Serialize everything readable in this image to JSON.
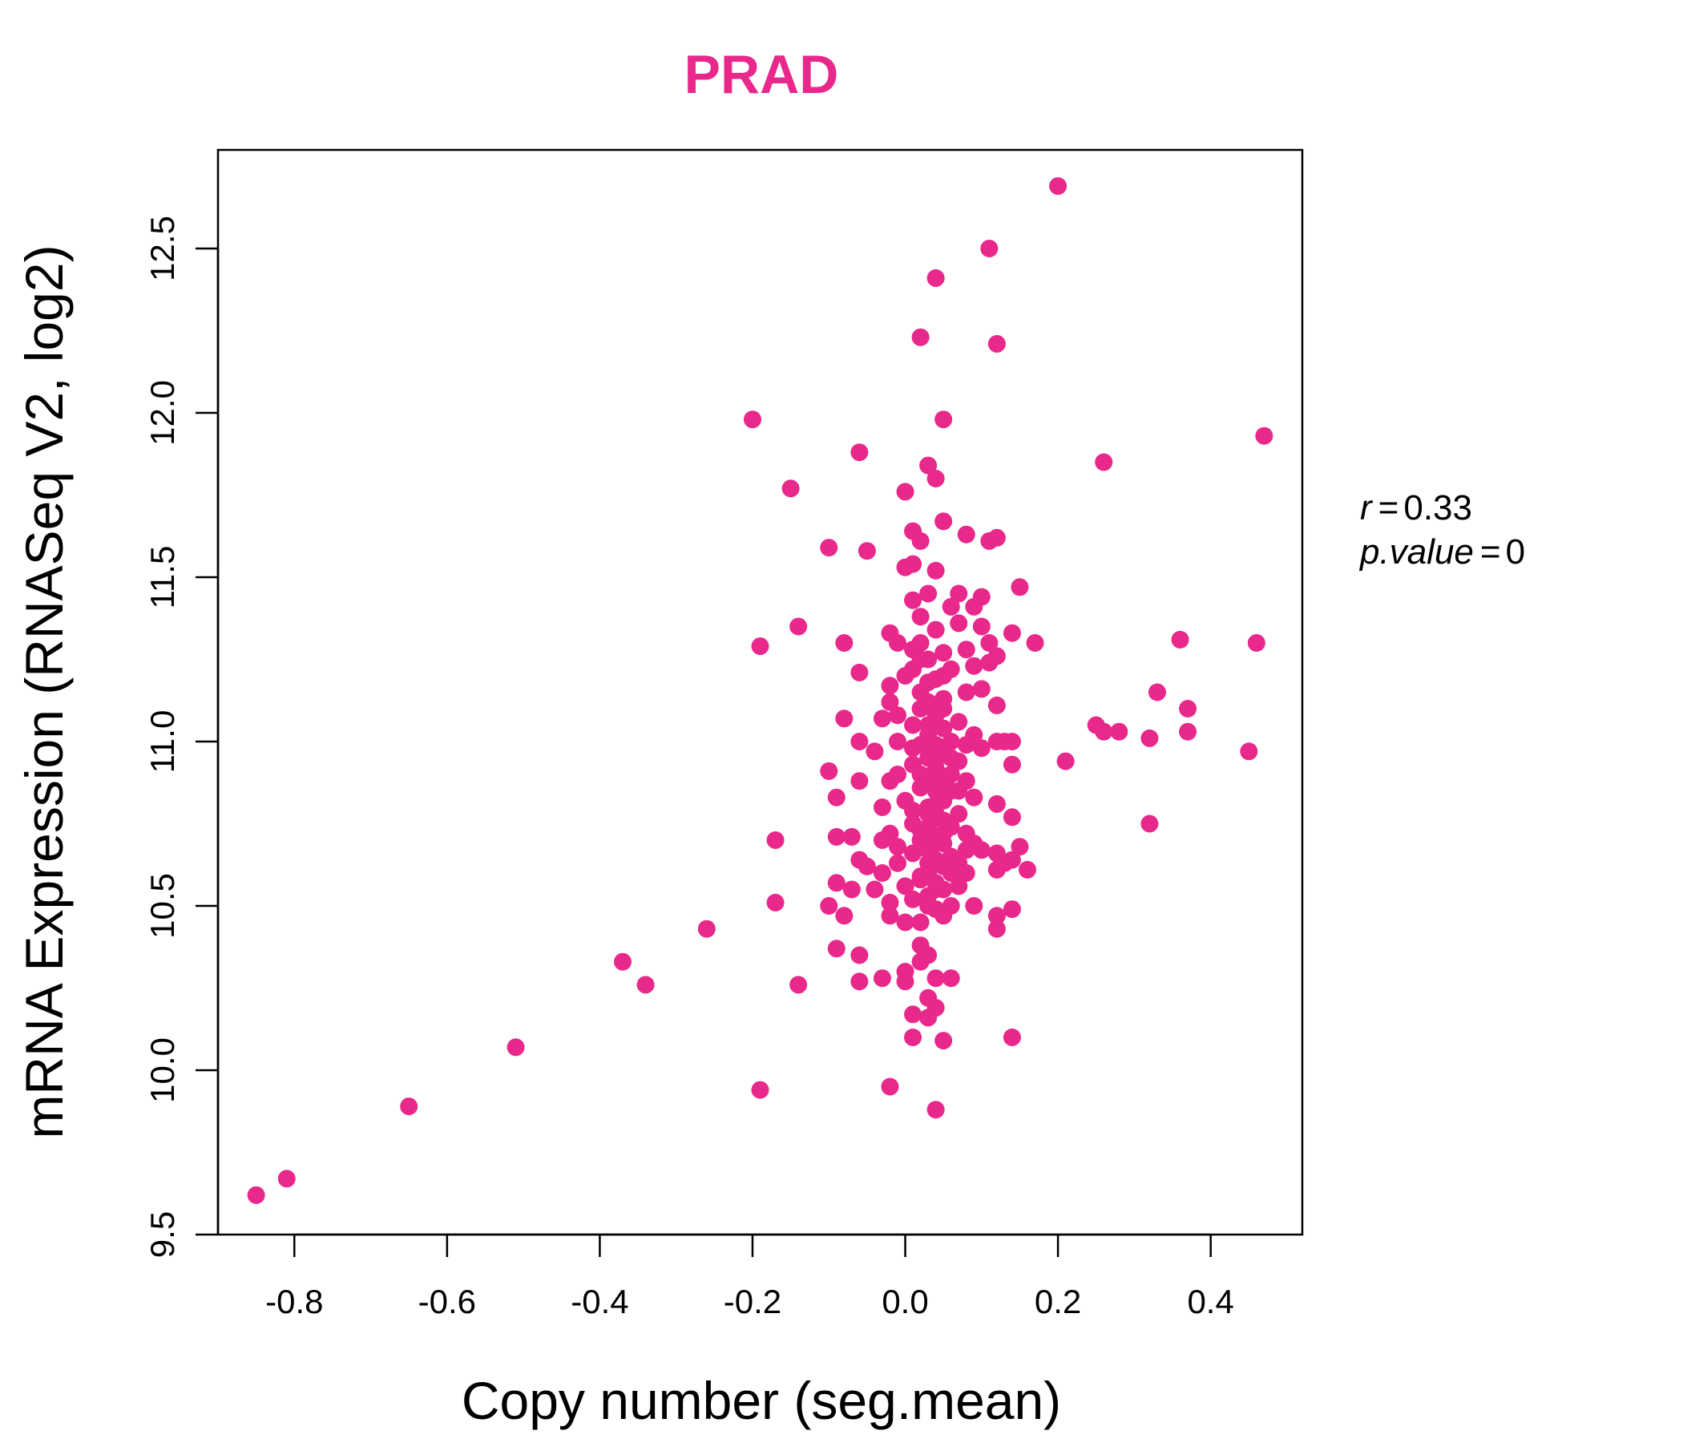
{
  "chart_data": {
    "type": "scatter",
    "title": "PRAD",
    "xlabel": "Copy number (seg.mean)",
    "ylabel": "mRNA Expression (RNASeq V2, log2)",
    "xlim": [
      -0.9,
      0.52
    ],
    "ylim": [
      9.5,
      12.8
    ],
    "xticks": [
      -0.8,
      -0.6,
      -0.4,
      -0.2,
      0.0,
      0.2,
      0.4
    ],
    "xtick_labels": [
      "-0.8",
      "-0.6",
      "-0.4",
      "-0.2",
      "0.0",
      "0.2",
      "0.4"
    ],
    "yticks": [
      9.5,
      10.0,
      10.5,
      11.0,
      11.5,
      12.0,
      12.5
    ],
    "ytick_labels": [
      "9.5",
      "10.0",
      "10.5",
      "11.0",
      "11.5",
      "12.0",
      "12.5"
    ],
    "color": "#e8288a",
    "stats": {
      "r_label": "r",
      "r_value": "0.33",
      "p_label": "p.value",
      "p_value": "0"
    },
    "points": [
      [
        -0.85,
        9.62
      ],
      [
        -0.81,
        9.67
      ],
      [
        -0.65,
        9.89
      ],
      [
        -0.51,
        10.07
      ],
      [
        -0.37,
        10.33
      ],
      [
        -0.34,
        10.26
      ],
      [
        -0.26,
        10.43
      ],
      [
        -0.19,
        9.94
      ],
      [
        -0.2,
        11.98
      ],
      [
        -0.19,
        11.29
      ],
      [
        -0.15,
        11.77
      ],
      [
        -0.14,
        11.35
      ],
      [
        -0.14,
        10.26
      ],
      [
        -0.17,
        10.7
      ],
      [
        -0.17,
        10.51
      ],
      [
        -0.1,
        11.59
      ],
      [
        -0.06,
        11.88
      ],
      [
        -0.05,
        11.58
      ],
      [
        -0.08,
        11.3
      ],
      [
        -0.06,
        11.21
      ],
      [
        -0.08,
        11.07
      ],
      [
        -0.06,
        11.0
      ],
      [
        -0.1,
        10.91
      ],
      [
        -0.09,
        10.83
      ],
      [
        -0.06,
        10.88
      ],
      [
        -0.09,
        10.71
      ],
      [
        -0.07,
        10.71
      ],
      [
        -0.06,
        10.64
      ],
      [
        -0.09,
        10.57
      ],
      [
        -0.07,
        10.55
      ],
      [
        -0.1,
        10.5
      ],
      [
        -0.08,
        10.47
      ],
      [
        -0.09,
        10.37
      ],
      [
        -0.06,
        10.35
      ],
      [
        -0.06,
        10.27
      ],
      [
        -0.03,
        10.28
      ],
      [
        -0.02,
        9.95
      ],
      [
        -0.04,
        10.55
      ],
      [
        -0.05,
        10.62
      ],
      [
        -0.03,
        10.6
      ],
      [
        -0.02,
        10.51
      ],
      [
        -0.02,
        10.47
      ],
      [
        -0.03,
        10.8
      ],
      [
        -0.04,
        10.97
      ],
      [
        -0.03,
        11.07
      ],
      [
        -0.02,
        11.12
      ],
      [
        -0.02,
        11.17
      ],
      [
        -0.01,
        11.3
      ],
      [
        -0.02,
        11.33
      ],
      [
        -0.01,
        11.08
      ],
      [
        -0.01,
        11.0
      ],
      [
        -0.01,
        10.9
      ],
      [
        -0.02,
        10.72
      ],
      [
        -0.01,
        10.63
      ],
      [
        0.0,
        10.56
      ],
      [
        0.0,
        10.45
      ],
      [
        0.0,
        10.3
      ],
      [
        0.01,
        10.17
      ],
      [
        0.01,
        10.1
      ],
      [
        0.0,
        10.27
      ],
      [
        0.0,
        11.53
      ],
      [
        0.01,
        11.54
      ],
      [
        0.0,
        11.76
      ],
      [
        0.01,
        11.64
      ],
      [
        0.02,
        11.61
      ],
      [
        0.01,
        11.43
      ],
      [
        0.02,
        11.38
      ],
      [
        0.02,
        11.3
      ],
      [
        0.01,
        11.22
      ],
      [
        0.02,
        11.15
      ],
      [
        0.01,
        11.05
      ],
      [
        0.02,
        10.99
      ],
      [
        0.01,
        10.93
      ],
      [
        0.02,
        10.86
      ],
      [
        0.01,
        10.79
      ],
      [
        0.02,
        10.73
      ],
      [
        0.01,
        10.66
      ],
      [
        0.02,
        10.59
      ],
      [
        0.01,
        10.52
      ],
      [
        0.02,
        10.45
      ],
      [
        0.02,
        10.38
      ],
      [
        0.02,
        10.33
      ],
      [
        0.03,
        10.22
      ],
      [
        0.03,
        10.16
      ],
      [
        0.03,
        11.84
      ],
      [
        0.02,
        12.23
      ],
      [
        0.03,
        11.45
      ],
      [
        0.03,
        11.25
      ],
      [
        0.03,
        11.12
      ],
      [
        0.03,
        11.02
      ],
      [
        0.03,
        10.95
      ],
      [
        0.03,
        10.88
      ],
      [
        0.03,
        10.8
      ],
      [
        0.03,
        10.74
      ],
      [
        0.03,
        10.67
      ],
      [
        0.03,
        10.6
      ],
      [
        0.03,
        10.53
      ],
      [
        0.03,
        10.35
      ],
      [
        0.04,
        12.41
      ],
      [
        0.04,
        11.8
      ],
      [
        0.04,
        11.52
      ],
      [
        0.04,
        11.34
      ],
      [
        0.04,
        11.19
      ],
      [
        0.04,
        11.08
      ],
      [
        0.04,
        10.99
      ],
      [
        0.04,
        10.92
      ],
      [
        0.04,
        10.85
      ],
      [
        0.04,
        10.78
      ],
      [
        0.04,
        10.71
      ],
      [
        0.04,
        10.64
      ],
      [
        0.04,
        10.57
      ],
      [
        0.04,
        10.49
      ],
      [
        0.04,
        10.28
      ],
      [
        0.04,
        10.19
      ],
      [
        0.04,
        9.88
      ],
      [
        0.05,
        11.98
      ],
      [
        0.05,
        10.09
      ],
      [
        0.05,
        11.67
      ],
      [
        0.05,
        11.27
      ],
      [
        0.05,
        11.13
      ],
      [
        0.05,
        11.04
      ],
      [
        0.05,
        10.96
      ],
      [
        0.05,
        10.89
      ],
      [
        0.05,
        10.82
      ],
      [
        0.05,
        10.76
      ],
      [
        0.05,
        10.69
      ],
      [
        0.05,
        10.62
      ],
      [
        0.05,
        10.55
      ],
      [
        0.05,
        10.47
      ],
      [
        0.06,
        11.41
      ],
      [
        0.06,
        11.22
      ],
      [
        0.06,
        11.0
      ],
      [
        0.06,
        10.9
      ],
      [
        0.06,
        10.74
      ],
      [
        0.06,
        10.65
      ],
      [
        0.06,
        10.5
      ],
      [
        0.06,
        10.28
      ],
      [
        0.07,
        11.45
      ],
      [
        0.07,
        11.36
      ],
      [
        0.07,
        11.06
      ],
      [
        0.07,
        10.94
      ],
      [
        0.07,
        10.78
      ],
      [
        0.07,
        10.63
      ],
      [
        0.07,
        10.56
      ],
      [
        0.08,
        11.63
      ],
      [
        0.08,
        11.28
      ],
      [
        0.08,
        11.15
      ],
      [
        0.08,
        10.99
      ],
      [
        0.08,
        10.88
      ],
      [
        0.08,
        10.72
      ],
      [
        0.08,
        10.6
      ],
      [
        0.09,
        11.41
      ],
      [
        0.09,
        11.23
      ],
      [
        0.09,
        11.02
      ],
      [
        0.09,
        10.83
      ],
      [
        0.09,
        10.69
      ],
      [
        0.09,
        10.5
      ],
      [
        0.1,
        11.35
      ],
      [
        0.1,
        11.16
      ],
      [
        0.1,
        10.98
      ],
      [
        0.1,
        10.67
      ],
      [
        0.1,
        11.44
      ],
      [
        0.11,
        12.5
      ],
      [
        0.11,
        11.61
      ],
      [
        0.11,
        11.3
      ],
      [
        0.11,
        11.24
      ],
      [
        0.12,
        12.21
      ],
      [
        0.12,
        11.62
      ],
      [
        0.12,
        11.26
      ],
      [
        0.12,
        11.11
      ],
      [
        0.12,
        11.0
      ],
      [
        0.12,
        10.81
      ],
      [
        0.12,
        10.66
      ],
      [
        0.12,
        10.61
      ],
      [
        0.12,
        10.47
      ],
      [
        0.12,
        10.43
      ],
      [
        0.13,
        11.0
      ],
      [
        0.13,
        10.63
      ],
      [
        0.14,
        11.33
      ],
      [
        0.14,
        11.0
      ],
      [
        0.14,
        10.93
      ],
      [
        0.14,
        10.77
      ],
      [
        0.14,
        10.64
      ],
      [
        0.14,
        10.49
      ],
      [
        0.14,
        10.1
      ],
      [
        0.15,
        11.47
      ],
      [
        0.15,
        10.68
      ],
      [
        0.16,
        10.61
      ],
      [
        0.17,
        11.3
      ],
      [
        0.2,
        12.69
      ],
      [
        0.21,
        10.94
      ],
      [
        0.25,
        11.05
      ],
      [
        0.26,
        11.85
      ],
      [
        0.26,
        11.03
      ],
      [
        0.28,
        11.03
      ],
      [
        0.32,
        11.01
      ],
      [
        0.32,
        10.75
      ],
      [
        0.33,
        11.15
      ],
      [
        0.36,
        11.31
      ],
      [
        0.37,
        11.1
      ],
      [
        0.37,
        11.03
      ],
      [
        0.45,
        10.97
      ],
      [
        0.46,
        11.3
      ],
      [
        0.47,
        11.93
      ],
      [
        0.0,
        10.82
      ],
      [
        0.01,
        10.75
      ],
      [
        -0.01,
        10.68
      ],
      [
        0.02,
        10.9
      ],
      [
        0.03,
        10.63
      ],
      [
        0.04,
        10.55
      ],
      [
        0.05,
        11.2
      ],
      [
        0.06,
        10.85
      ],
      [
        0.02,
        10.7
      ],
      [
        0.03,
        11.05
      ],
      [
        0.04,
        10.81
      ],
      [
        0.01,
        10.98
      ],
      [
        0.05,
        10.72
      ],
      [
        0.02,
        10.58
      ],
      [
        0.06,
        10.95
      ],
      [
        0.03,
        10.78
      ],
      [
        0.04,
        10.69
      ],
      [
        0.02,
        11.1
      ],
      [
        0.05,
        10.88
      ],
      [
        0.03,
        10.5
      ],
      [
        -0.02,
        10.88
      ],
      [
        -0.03,
        10.7
      ],
      [
        0.07,
        10.85
      ],
      [
        0.08,
        10.67
      ],
      [
        0.06,
        10.6
      ],
      [
        0.0,
        11.2
      ],
      [
        0.01,
        11.28
      ],
      [
        0.03,
        11.18
      ],
      [
        0.02,
        11.25
      ],
      [
        0.05,
        11.1
      ]
    ]
  }
}
